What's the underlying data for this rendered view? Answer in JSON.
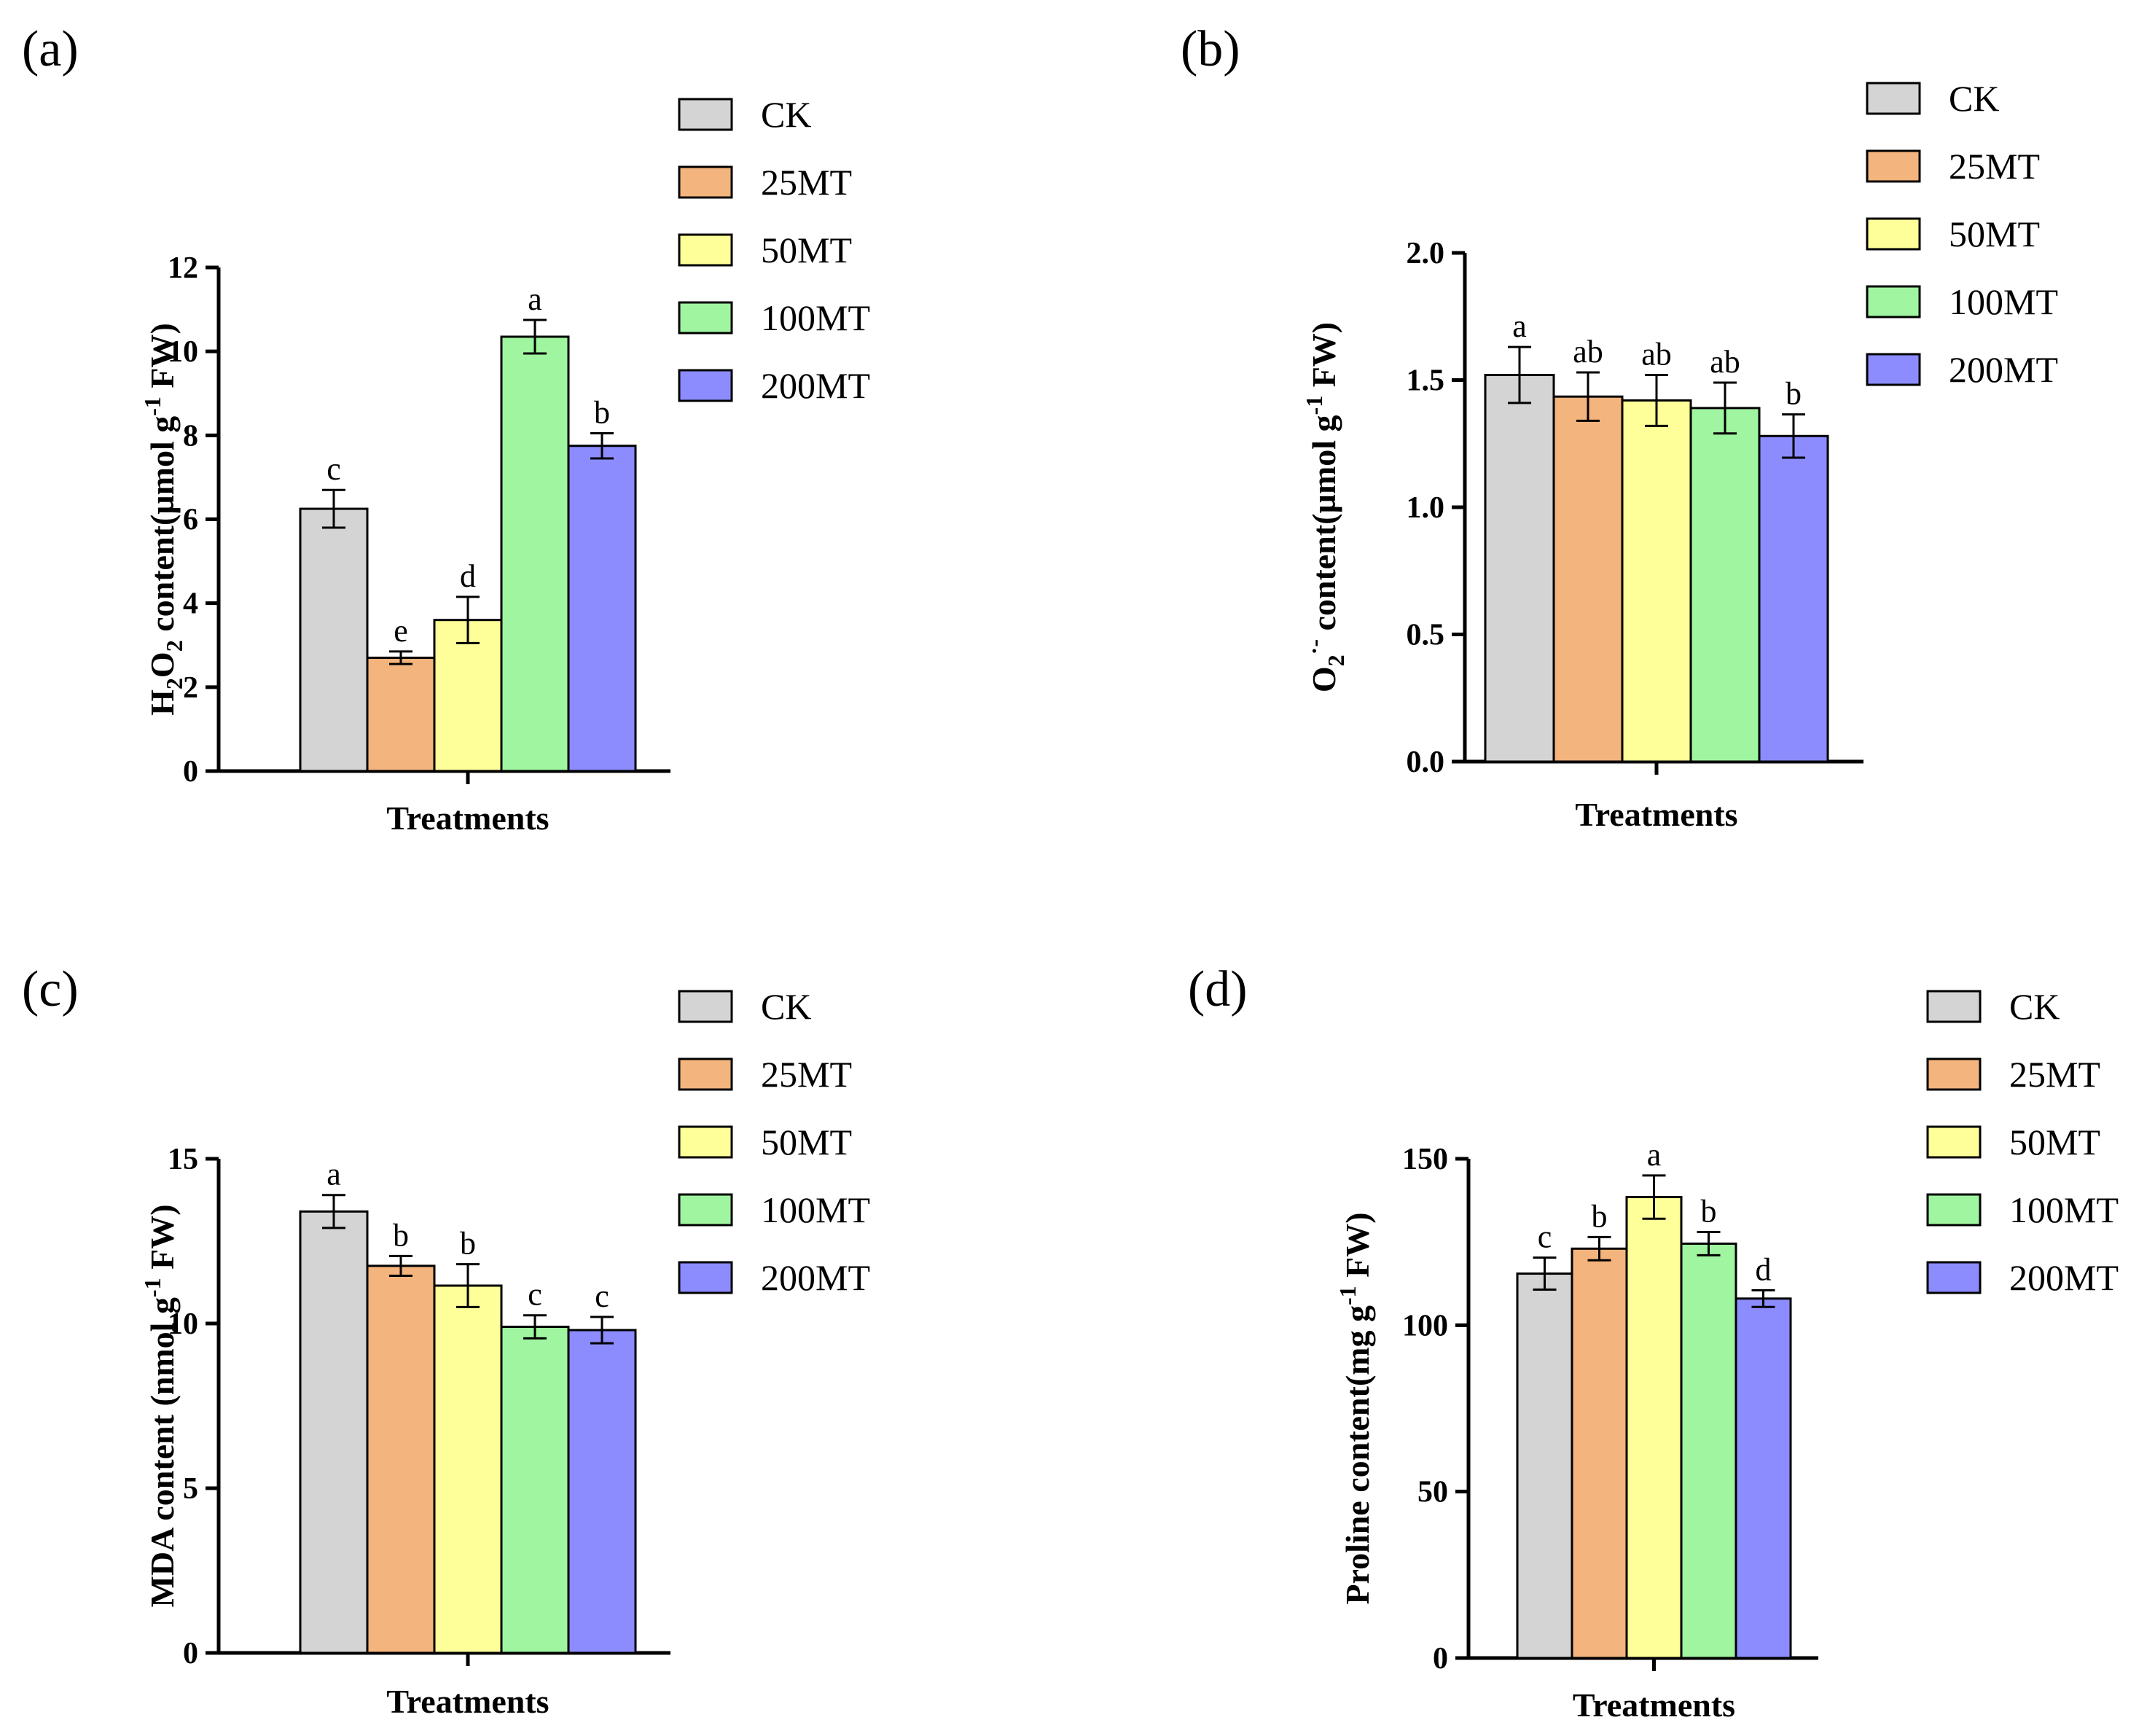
{
  "legend_colors": [
    "#d4d4d4",
    "#f3b47d",
    "#ffff99",
    "#a0f5a0",
    "#8c8cff"
  ],
  "chart_data": [
    {
      "id": "a",
      "type": "bar",
      "panel_label": "(a)",
      "xlabel": "Treatments",
      "ylabel": {
        "pre": "H",
        "sub1": "2",
        "mid": "O",
        "sub2": "2",
        "post": " content(µmol g",
        "sup": "-1",
        "end": " FW)"
      },
      "categories": [
        "CK",
        "25MT",
        "50MT",
        "100MT",
        "200MT"
      ],
      "values": [
        6.25,
        2.7,
        3.6,
        10.35,
        7.75
      ],
      "errors": [
        0.45,
        0.15,
        0.55,
        0.4,
        0.3
      ],
      "letters": [
        "c",
        "e",
        "d",
        "a",
        "b"
      ],
      "ylim": [
        0,
        12
      ],
      "yticks": [
        0,
        2,
        4,
        6,
        8,
        10,
        12
      ],
      "ytick_labels": [
        "0",
        "2",
        "4",
        "6",
        "8",
        "10",
        "12"
      ]
    },
    {
      "id": "b",
      "type": "bar",
      "panel_label": "(b)",
      "xlabel": "Treatments",
      "ylabel": {
        "pre": "O",
        "sub1": "2",
        "sup1": "·-",
        "post": " content(µmol g",
        "sup": "-1",
        "end": " FW)"
      },
      "categories": [
        "CK",
        "25MT",
        "50MT",
        "100MT",
        "200MT"
      ],
      "values": [
        1.52,
        1.435,
        1.42,
        1.39,
        1.28
      ],
      "errors": [
        0.11,
        0.095,
        0.1,
        0.1,
        0.085
      ],
      "letters": [
        "a",
        "ab",
        "ab",
        "ab",
        "b"
      ],
      "ylim": [
        0,
        2.0
      ],
      "yticks": [
        0,
        0.5,
        1.0,
        1.5,
        2.0
      ],
      "ytick_labels": [
        "0.0",
        "0.5",
        "1.0",
        "1.5",
        "2.0"
      ]
    },
    {
      "id": "c",
      "type": "bar",
      "panel_label": "(c)",
      "xlabel": "Treatments",
      "ylabel": {
        "pre": "MDA content (nmol g",
        "sup": "-1",
        "end": "  FW)"
      },
      "categories": [
        "CK",
        "25MT",
        "50MT",
        "100MT",
        "200MT"
      ],
      "values": [
        13.4,
        11.75,
        11.15,
        9.9,
        9.8
      ],
      "errors": [
        0.5,
        0.3,
        0.65,
        0.35,
        0.4
      ],
      "letters": [
        "a",
        "b",
        "b",
        "c",
        "c"
      ],
      "ylim": [
        0,
        15
      ],
      "yticks": [
        0,
        5,
        10,
        15
      ],
      "ytick_labels": [
        "0",
        "5",
        "10",
        "15"
      ]
    },
    {
      "id": "d",
      "type": "bar",
      "panel_label": "(d)",
      "xlabel": "Treatments",
      "ylabel": {
        "pre": "Proline  content(mg g",
        "sup": "-1",
        "end": " FW)"
      },
      "categories": [
        "CK",
        "25MT",
        "50MT",
        "100MT",
        "200MT"
      ],
      "values": [
        115.5,
        123,
        138.5,
        124.5,
        108
      ],
      "errors": [
        4.8,
        3.5,
        6.5,
        3.5,
        2.5
      ],
      "letters": [
        "c",
        "b",
        "a",
        "b",
        "d"
      ],
      "ylim": [
        0,
        150
      ],
      "yticks": [
        0,
        50,
        100,
        150
      ],
      "ytick_labels": [
        "0",
        "50",
        "100",
        "150"
      ]
    }
  ]
}
